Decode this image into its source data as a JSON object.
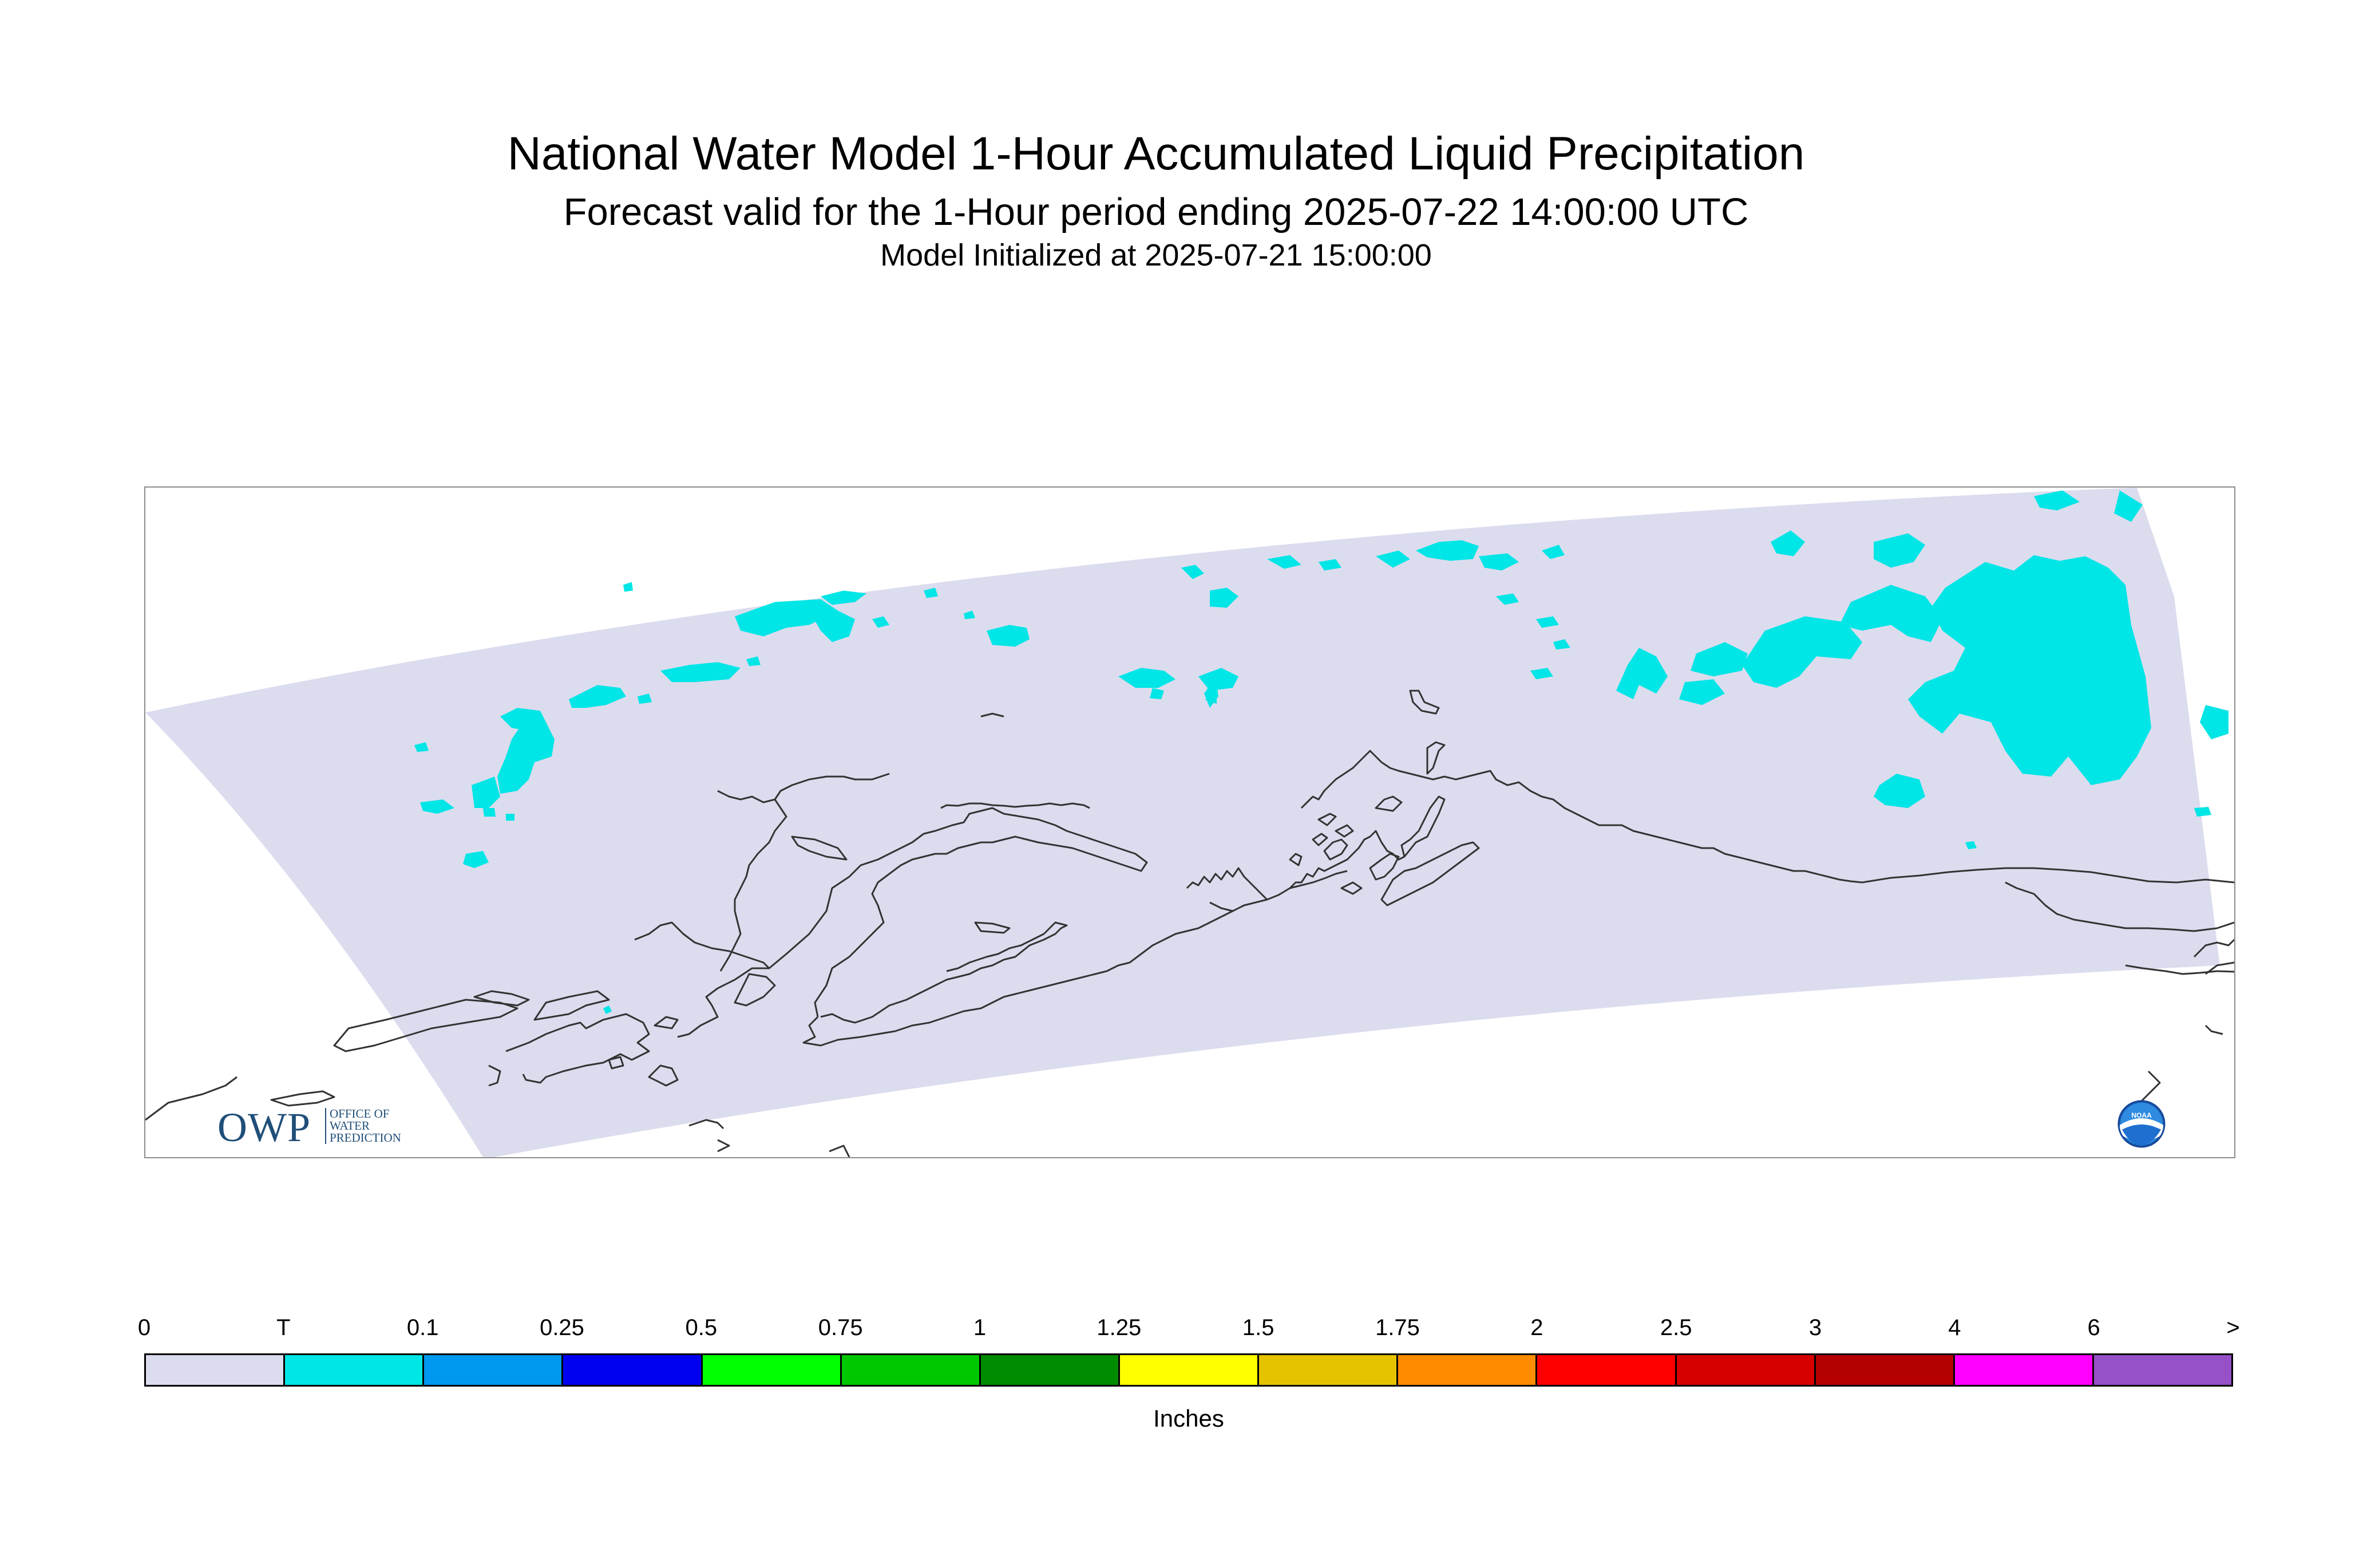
{
  "header": {
    "title": "National Water Model 1-Hour Accumulated Liquid Precipitation",
    "subtitle": "Forecast valid for the 1-Hour period ending 2025-07-22 14:00:00 UTC",
    "init_line": "Model Initialized at 2025-07-21 15:00:00"
  },
  "map": {
    "region": "Alaska",
    "background_color": "#ffffff",
    "domain_color": "#dcdcef",
    "precip_color": "#00e5e5",
    "coastline_color": "#333333"
  },
  "logos": {
    "owp": {
      "letters": "OWP",
      "subtitle": "OFFICE OF\nWATER\nPREDICTION"
    },
    "noaa": {
      "text": "NOAA",
      "icon": "noaa-emblem-icon"
    }
  },
  "legend": {
    "tick_labels": [
      "0",
      "T",
      "0.1",
      "0.25",
      "0.5",
      "0.75",
      "1",
      "1.25",
      "1.5",
      "1.75",
      "2",
      "2.5",
      "3",
      "4",
      "6",
      ">"
    ],
    "colors": [
      "#dcdcef",
      "#00e5e5",
      "#0099f0",
      "#0000f0",
      "#00ff00",
      "#00c800",
      "#008c00",
      "#ffff00",
      "#e6c300",
      "#ff8c00",
      "#ff0000",
      "#d70000",
      "#b40000",
      "#ff00ff",
      "#9650c8"
    ],
    "units": "Inches"
  }
}
